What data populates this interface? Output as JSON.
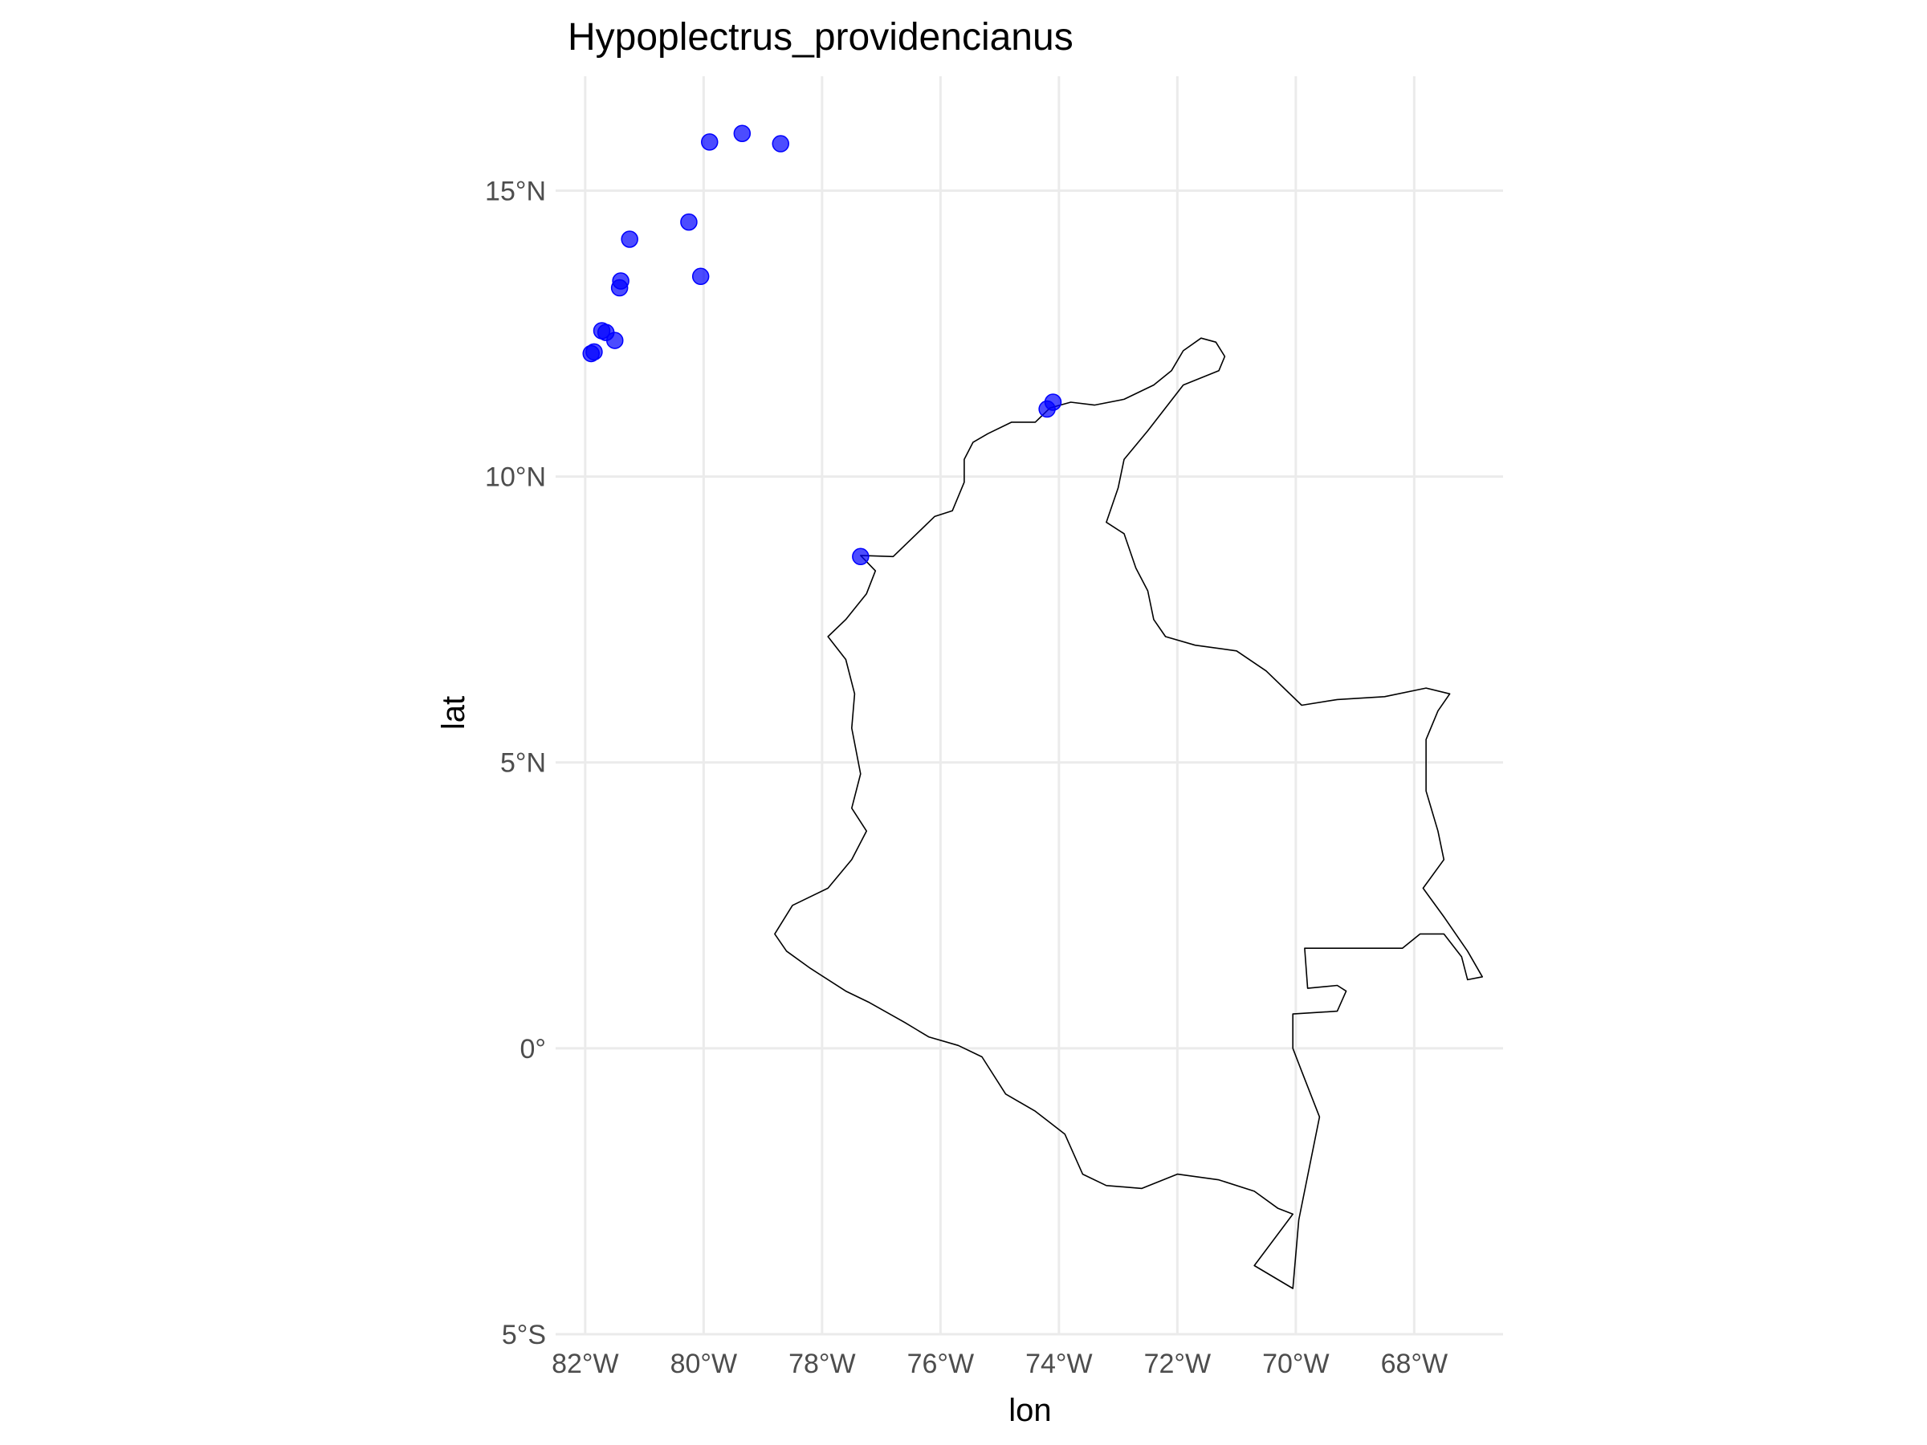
{
  "chart_data": {
    "type": "scatter",
    "title": "Hypoplectrus_providencianus",
    "xlabel": "lon",
    "ylabel": "lat",
    "xlim": [
      -82.5,
      -66.5
    ],
    "ylim": [
      -5.0,
      17.0
    ],
    "x_ticks": [
      {
        "value": -82,
        "label": "82°W"
      },
      {
        "value": -80,
        "label": "80°W"
      },
      {
        "value": -78,
        "label": "78°W"
      },
      {
        "value": -76,
        "label": "76°W"
      },
      {
        "value": -74,
        "label": "74°W"
      },
      {
        "value": -72,
        "label": "72°W"
      },
      {
        "value": -70,
        "label": "70°W"
      },
      {
        "value": -68,
        "label": "68°W"
      }
    ],
    "y_ticks": [
      {
        "value": -5,
        "label": "5°S"
      },
      {
        "value": 0,
        "label": "0°"
      },
      {
        "value": 5,
        "label": "5°N"
      },
      {
        "value": 10,
        "label": "10°N"
      },
      {
        "value": 15,
        "label": "15°N"
      }
    ],
    "grid": true,
    "point_color": "#0000ff",
    "outline_color": "#000000",
    "points": [
      {
        "lon": -79.9,
        "lat": 15.85
      },
      {
        "lon": -79.35,
        "lat": 16.0
      },
      {
        "lon": -78.7,
        "lat": 15.82
      },
      {
        "lon": -80.25,
        "lat": 14.45
      },
      {
        "lon": -81.25,
        "lat": 14.15
      },
      {
        "lon": -80.05,
        "lat": 13.5
      },
      {
        "lon": -81.4,
        "lat": 13.42
      },
      {
        "lon": -81.42,
        "lat": 13.3
      },
      {
        "lon": -81.72,
        "lat": 12.55
      },
      {
        "lon": -81.65,
        "lat": 12.52
      },
      {
        "lon": -81.5,
        "lat": 12.38
      },
      {
        "lon": -81.85,
        "lat": 12.18
      },
      {
        "lon": -81.9,
        "lat": 12.15
      },
      {
        "lon": -74.1,
        "lat": 11.3
      },
      {
        "lon": -74.2,
        "lat": 11.18
      },
      {
        "lon": -77.35,
        "lat": 8.6
      }
    ],
    "outline": [
      [
        -71.2,
        12.1
      ],
      [
        -71.35,
        12.35
      ],
      [
        -71.6,
        12.42
      ],
      [
        -71.9,
        12.2
      ],
      [
        -72.1,
        11.85
      ],
      [
        -72.4,
        11.6
      ],
      [
        -72.9,
        11.35
      ],
      [
        -73.4,
        11.25
      ],
      [
        -73.8,
        11.3
      ],
      [
        -74.15,
        11.2
      ],
      [
        -74.4,
        10.95
      ],
      [
        -74.8,
        10.95
      ],
      [
        -75.2,
        10.75
      ],
      [
        -75.45,
        10.6
      ],
      [
        -75.6,
        10.3
      ],
      [
        -75.6,
        9.9
      ],
      [
        -75.8,
        9.4
      ],
      [
        -76.1,
        9.3
      ],
      [
        -76.4,
        9.0
      ],
      [
        -76.8,
        8.6
      ],
      [
        -77.35,
        8.62
      ],
      [
        -77.1,
        8.35
      ],
      [
        -77.25,
        7.95
      ],
      [
        -77.6,
        7.5
      ],
      [
        -77.9,
        7.2
      ],
      [
        -77.6,
        6.8
      ],
      [
        -77.45,
        6.2
      ],
      [
        -77.5,
        5.6
      ],
      [
        -77.35,
        4.8
      ],
      [
        -77.5,
        4.2
      ],
      [
        -77.25,
        3.8
      ],
      [
        -77.5,
        3.3
      ],
      [
        -77.9,
        2.8
      ],
      [
        -78.5,
        2.5
      ],
      [
        -78.8,
        2.0
      ],
      [
        -78.6,
        1.7
      ],
      [
        -78.2,
        1.4
      ],
      [
        -77.6,
        1.0
      ],
      [
        -77.2,
        0.8
      ],
      [
        -76.6,
        0.45
      ],
      [
        -76.2,
        0.2
      ],
      [
        -75.7,
        0.05
      ],
      [
        -75.3,
        -0.15
      ],
      [
        -74.9,
        -0.8
      ],
      [
        -74.4,
        -1.1
      ],
      [
        -73.9,
        -1.5
      ],
      [
        -73.6,
        -2.2
      ],
      [
        -73.2,
        -2.4
      ],
      [
        -72.6,
        -2.45
      ],
      [
        -72.0,
        -2.2
      ],
      [
        -71.3,
        -2.3
      ],
      [
        -70.7,
        -2.5
      ],
      [
        -70.3,
        -2.8
      ],
      [
        -70.05,
        -2.9
      ],
      [
        -70.7,
        -3.8
      ],
      [
        -70.05,
        -4.2
      ],
      [
        -69.95,
        -3.0
      ],
      [
        -69.6,
        -1.2
      ],
      [
        -69.9,
        -0.4
      ],
      [
        -70.05,
        0.0
      ],
      [
        -70.05,
        0.6
      ],
      [
        -69.3,
        0.65
      ],
      [
        -69.15,
        1.0
      ],
      [
        -69.3,
        1.1
      ],
      [
        -69.8,
        1.05
      ],
      [
        -69.85,
        1.75
      ],
      [
        -68.2,
        1.75
      ],
      [
        -67.9,
        2.0
      ],
      [
        -67.5,
        2.0
      ],
      [
        -67.2,
        1.6
      ],
      [
        -67.1,
        1.2
      ],
      [
        -66.85,
        1.25
      ],
      [
        -67.1,
        1.7
      ],
      [
        -67.5,
        2.3
      ],
      [
        -67.85,
        2.8
      ],
      [
        -67.5,
        3.3
      ],
      [
        -67.6,
        3.8
      ],
      [
        -67.8,
        4.5
      ],
      [
        -67.8,
        5.4
      ],
      [
        -67.6,
        5.9
      ],
      [
        -67.4,
        6.2
      ],
      [
        -67.8,
        6.3
      ],
      [
        -68.5,
        6.15
      ],
      [
        -69.3,
        6.1
      ],
      [
        -69.9,
        6.0
      ],
      [
        -70.5,
        6.6
      ],
      [
        -71.0,
        6.95
      ],
      [
        -71.7,
        7.05
      ],
      [
        -72.2,
        7.2
      ],
      [
        -72.4,
        7.5
      ],
      [
        -72.5,
        8.0
      ],
      [
        -72.7,
        8.4
      ],
      [
        -72.9,
        9.0
      ],
      [
        -73.2,
        9.2
      ],
      [
        -73.0,
        9.8
      ],
      [
        -72.9,
        10.3
      ],
      [
        -72.5,
        10.8
      ],
      [
        -72.2,
        11.2
      ],
      [
        -71.9,
        11.6
      ],
      [
        -71.3,
        11.85
      ],
      [
        -71.2,
        12.1
      ]
    ]
  }
}
